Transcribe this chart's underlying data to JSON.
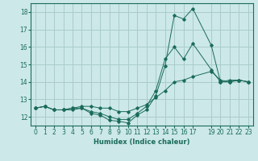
{
  "background_color": "#cce8e8",
  "grid_color": "#aacccc",
  "line_color": "#1a6b5a",
  "xlabel": "Humidex (Indice chaleur)",
  "xlim": [
    -0.5,
    23.5
  ],
  "ylim": [
    11.5,
    18.5
  ],
  "yticks": [
    12,
    13,
    14,
    15,
    16,
    17,
    18
  ],
  "xticks": [
    0,
    1,
    2,
    3,
    4,
    5,
    6,
    7,
    8,
    9,
    10,
    11,
    12,
    13,
    14,
    15,
    16,
    17,
    19,
    20,
    21,
    22,
    23
  ],
  "series": [
    {
      "x": [
        0,
        1,
        2,
        3,
        4,
        5,
        6,
        7,
        8,
        9,
        10,
        11,
        12,
        13,
        14,
        15,
        16,
        17,
        19,
        20,
        21,
        22,
        23
      ],
      "y": [
        12.5,
        12.6,
        12.4,
        12.4,
        12.5,
        12.5,
        12.2,
        12.1,
        11.8,
        11.75,
        11.65,
        12.1,
        12.4,
        13.2,
        14.9,
        17.8,
        17.6,
        18.2,
        16.1,
        14.0,
        14.1,
        14.1,
        14.0
      ]
    },
    {
      "x": [
        0,
        1,
        2,
        3,
        4,
        5,
        6,
        7,
        8,
        9,
        10,
        11,
        12,
        13,
        14,
        15,
        16,
        17,
        19,
        20,
        21,
        22,
        23
      ],
      "y": [
        12.5,
        12.6,
        12.4,
        12.4,
        12.4,
        12.5,
        12.3,
        12.2,
        12.0,
        11.85,
        11.85,
        12.2,
        12.6,
        13.5,
        15.3,
        16.0,
        15.3,
        16.2,
        14.7,
        14.0,
        14.0,
        14.1,
        14.0
      ]
    },
    {
      "x": [
        0,
        1,
        2,
        3,
        4,
        5,
        6,
        7,
        8,
        9,
        10,
        11,
        12,
        13,
        14,
        15,
        16,
        17,
        19,
        20,
        21,
        22,
        23
      ],
      "y": [
        12.5,
        12.6,
        12.4,
        12.4,
        12.5,
        12.6,
        12.6,
        12.5,
        12.5,
        12.3,
        12.3,
        12.5,
        12.7,
        13.1,
        13.5,
        14.0,
        14.1,
        14.3,
        14.6,
        14.1,
        14.0,
        14.1,
        14.0
      ]
    }
  ]
}
